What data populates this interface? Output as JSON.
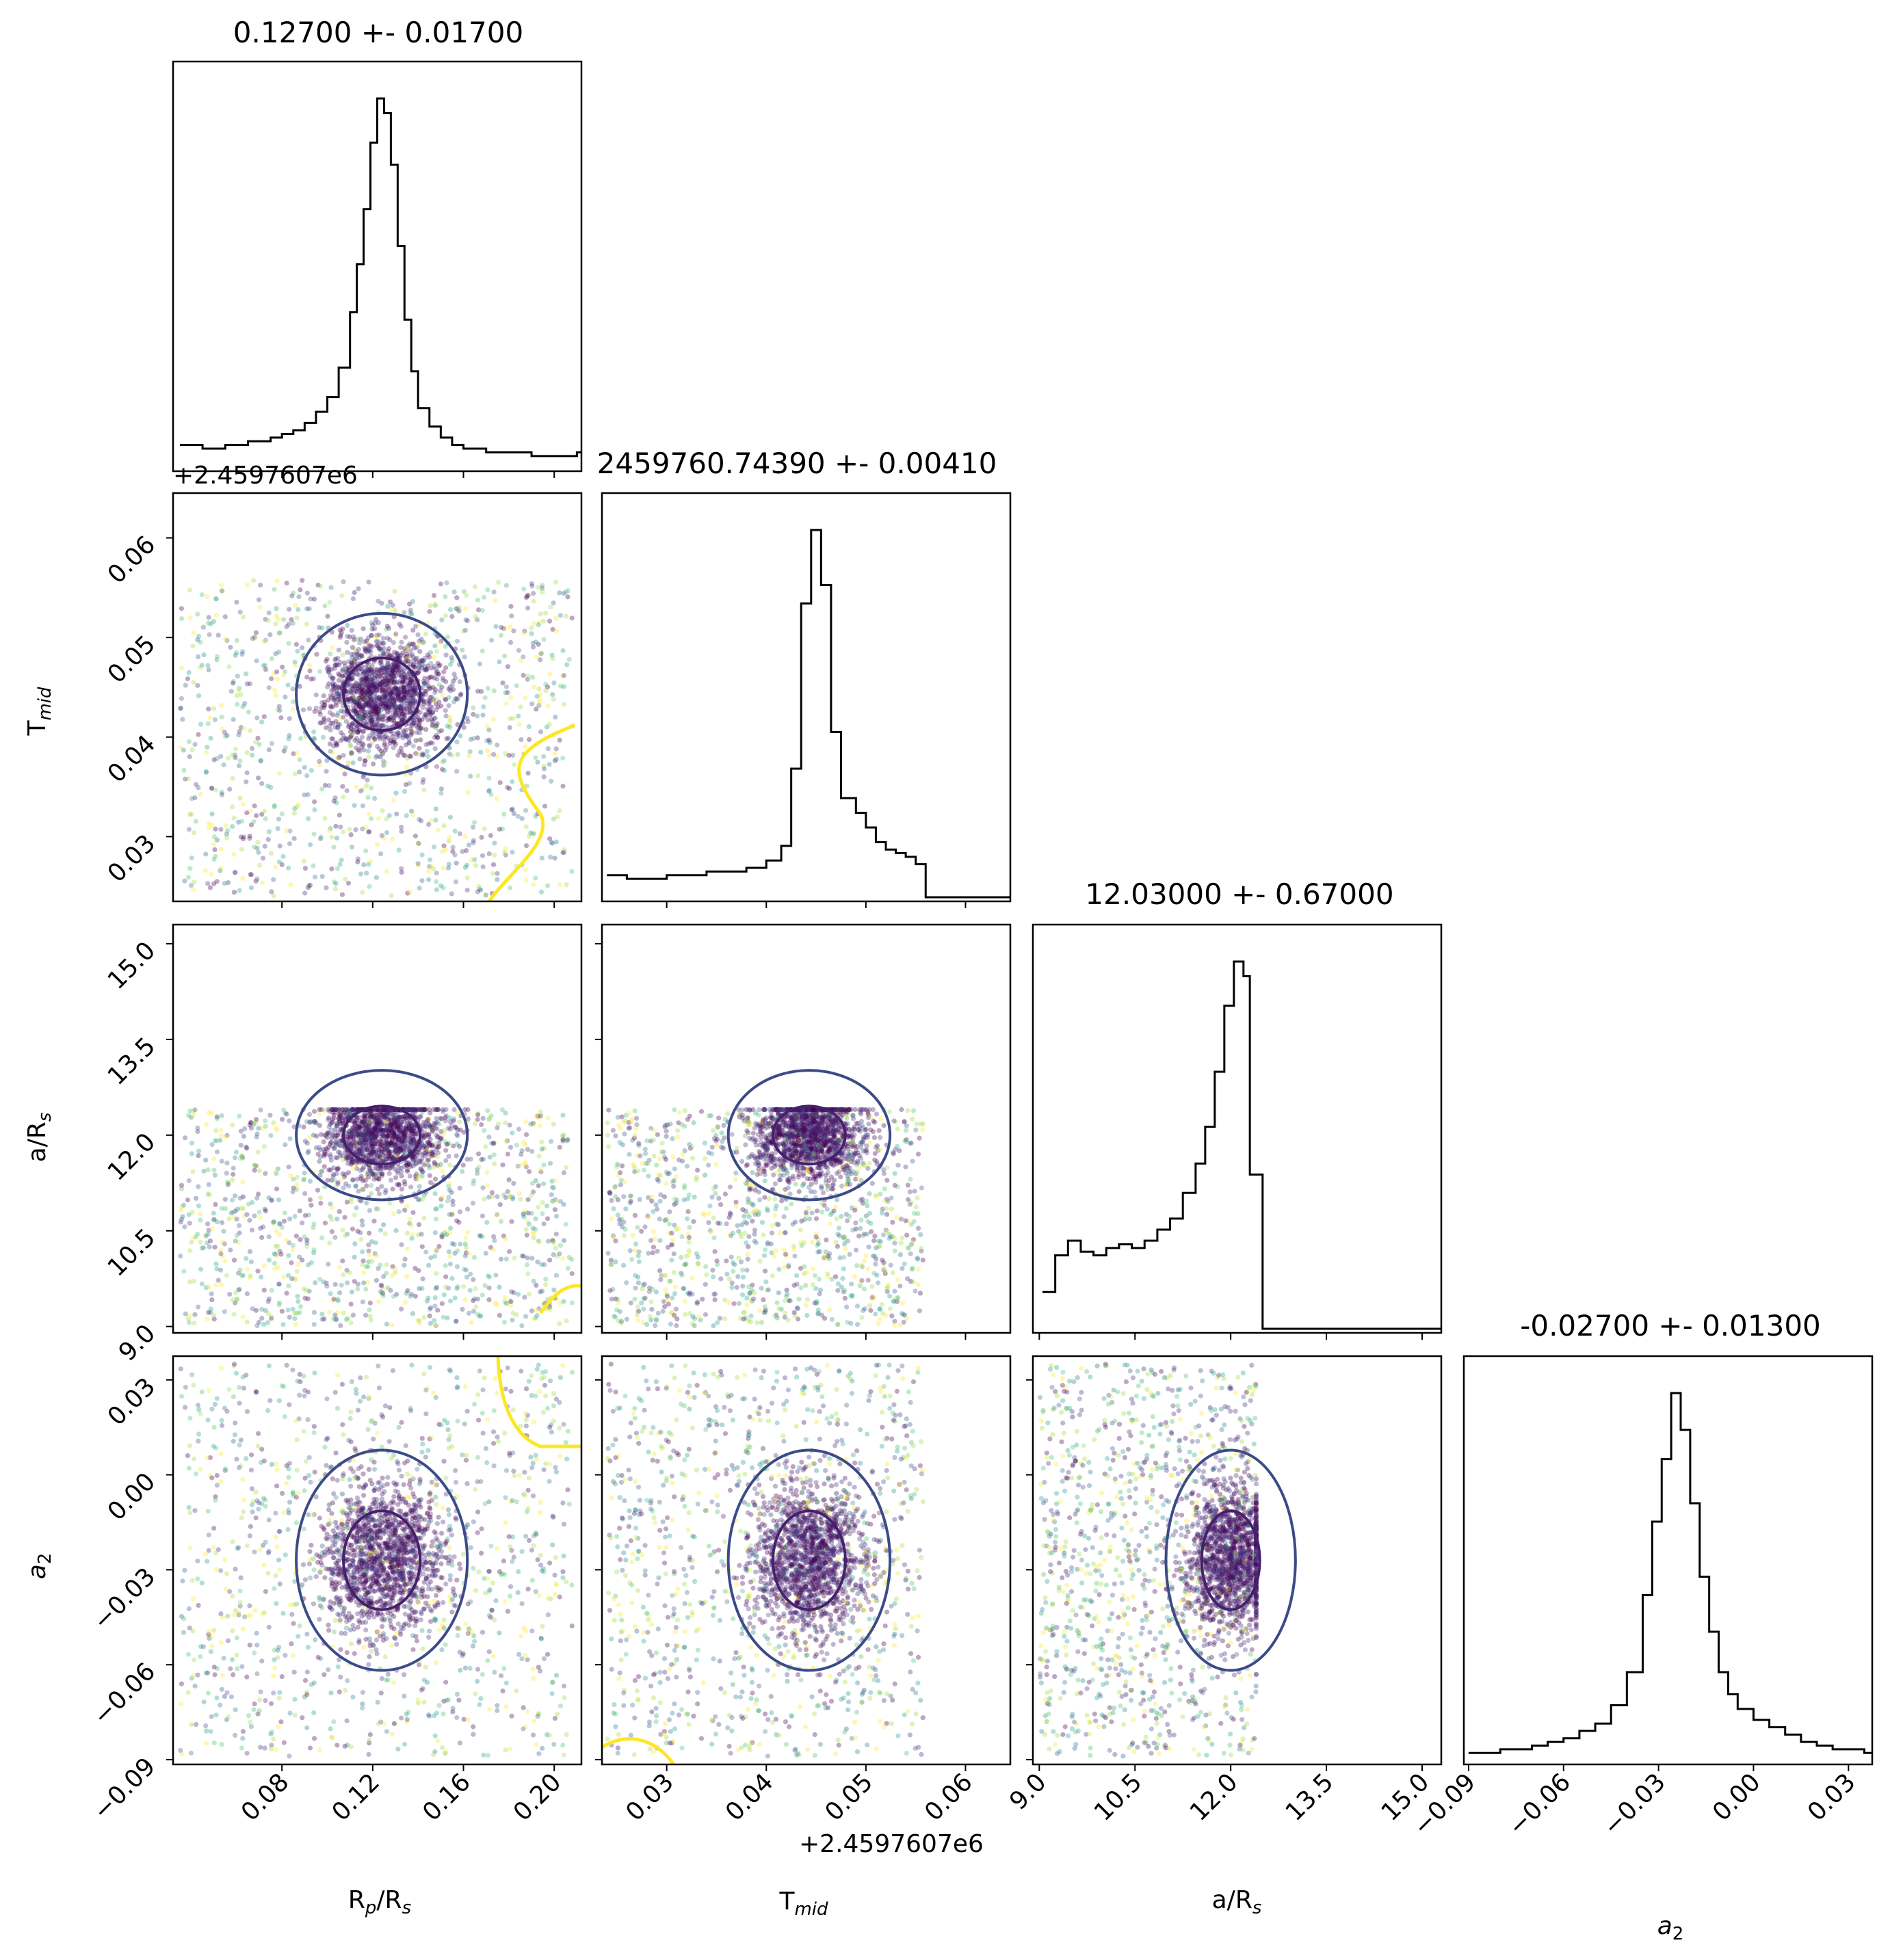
{
  "chart_data": {
    "type": "corner",
    "parameters": [
      {
        "key": "rp",
        "label_base": "R",
        "label_sub": "p",
        "label_mid": "/R",
        "label_sub2": "s",
        "title": "0.12700 +- 0.01700",
        "axis_range": [
          0.032,
          0.212
        ],
        "ticks": [
          0.08,
          0.12,
          0.16,
          0.2
        ],
        "tick_labels": [
          "0.08",
          "0.12",
          "0.16",
          "0.20"
        ]
      },
      {
        "key": "tmid",
        "label_base": "T",
        "label_sub": "mid",
        "label_mid": "",
        "label_sub2": "",
        "title": "2459760.74390 +- 0.00410",
        "axis_range": [
          0.0235,
          0.0645
        ],
        "ticks": [
          0.03,
          0.04,
          0.05,
          0.06
        ],
        "tick_labels": [
          "0.03",
          "0.04",
          "0.05",
          "0.06"
        ],
        "offset_label": "+2.4597607e6"
      },
      {
        "key": "ars",
        "label_base": "a/R",
        "label_sub": "s",
        "label_mid": "",
        "label_sub2": "",
        "title": "12.03000 +- 0.67000",
        "axis_range": [
          8.9,
          15.3
        ],
        "ticks": [
          9.0,
          10.5,
          12.0,
          13.5,
          15.0
        ],
        "tick_labels": [
          "9.0",
          "10.5",
          "12.0",
          "13.5",
          "15.0"
        ]
      },
      {
        "key": "a2",
        "label_base": "a",
        "label_sub": "2",
        "label_mid": "",
        "label_sub2": "",
        "label_italic": true,
        "title": "-0.02700 +- 0.01300",
        "axis_range": [
          -0.0915,
          0.0375
        ],
        "ticks": [
          -0.09,
          -0.06,
          -0.03,
          0.0,
          0.03
        ],
        "tick_labels": [
          "−0.09",
          "−0.06",
          "−0.03",
          "0.00",
          "0.03"
        ]
      }
    ],
    "histograms": {
      "rp": {
        "x": [
          0.035,
          0.045,
          0.055,
          0.065,
          0.075,
          0.08,
          0.085,
          0.09,
          0.095,
          0.1,
          0.105,
          0.11,
          0.113,
          0.116,
          0.119,
          0.122,
          0.125,
          0.128,
          0.131,
          0.134,
          0.137,
          0.14,
          0.145,
          0.15,
          0.155,
          0.16,
          0.17,
          0.18,
          0.19,
          0.2,
          0.21
        ],
        "counts": [
          6,
          5,
          6,
          7,
          8,
          9,
          10,
          12,
          15,
          19,
          27,
          42,
          55,
          70,
          88,
          100,
          96,
          82,
          60,
          40,
          26,
          16,
          11,
          8,
          6,
          5,
          4,
          4,
          3,
          3,
          4
        ]
      },
      "tmid": {
        "x": [
          0.024,
          0.026,
          0.028,
          0.03,
          0.032,
          0.034,
          0.036,
          0.038,
          0.04,
          0.0415,
          0.0425,
          0.0435,
          0.0445,
          0.0455,
          0.0465,
          0.0475,
          0.049,
          0.05,
          0.051,
          0.052,
          0.053,
          0.054,
          0.055,
          0.056,
          0.058,
          0.06,
          0.062,
          0.064
        ],
        "counts": [
          6,
          5,
          5,
          6,
          6,
          7,
          7,
          8,
          10,
          14,
          35,
          80,
          100,
          85,
          45,
          27,
          23,
          19,
          15,
          13,
          12,
          11,
          9,
          0,
          0,
          0,
          0,
          0
        ]
      },
      "ars": {
        "x": [
          9.05,
          9.25,
          9.45,
          9.65,
          9.85,
          10.05,
          10.25,
          10.45,
          10.65,
          10.85,
          11.05,
          11.25,
          11.45,
          11.6,
          11.75,
          11.9,
          12.05,
          12.2,
          12.3,
          12.5,
          13.0,
          13.5,
          14.0,
          14.5,
          15.0
        ],
        "counts": [
          10,
          20,
          24,
          21,
          20,
          22,
          23,
          22,
          24,
          27,
          30,
          37,
          45,
          55,
          70,
          88,
          100,
          96,
          42,
          0,
          0,
          0,
          0,
          0,
          0
        ]
      },
      "a2": {
        "x": [
          -0.09,
          -0.085,
          -0.08,
          -0.075,
          -0.07,
          -0.065,
          -0.06,
          -0.055,
          -0.05,
          -0.045,
          -0.04,
          -0.035,
          -0.032,
          -0.029,
          -0.026,
          -0.023,
          -0.02,
          -0.017,
          -0.014,
          -0.011,
          -0.008,
          -0.005,
          0.0,
          0.005,
          0.01,
          0.015,
          0.02,
          0.025,
          0.03,
          0.035
        ],
        "counts": [
          2,
          2,
          3,
          3,
          4,
          5,
          6,
          8,
          10,
          15,
          24,
          45,
          65,
          82,
          100,
          90,
          70,
          50,
          35,
          24,
          18,
          14,
          11,
          9,
          7,
          5,
          4,
          3,
          3,
          2
        ]
      }
    },
    "scatter_color_scale": "viridis",
    "contour_colors": [
      "#3b4b87",
      "#45206b",
      "#fde725"
    ],
    "hist_color": "#000000"
  }
}
